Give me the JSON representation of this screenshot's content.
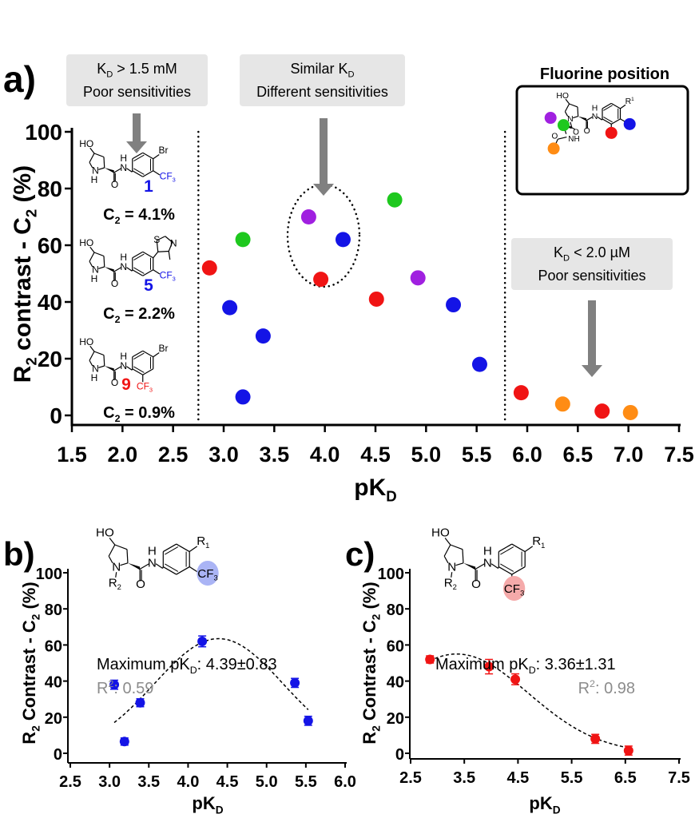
{
  "colors": {
    "red": "#f01414",
    "blue": "#1414e6",
    "green": "#1ec81e",
    "purple": "#a020e0",
    "orange": "#ff8c14",
    "annot_box": "#e6e6e6",
    "arrow": "#808080",
    "r2_text": "#8c8c8c",
    "blue_highlight": "#aab4f5",
    "red_highlight": "#f5aaaa"
  },
  "chart_data": [
    {
      "panel": "a)",
      "type": "scatter",
      "xlabel": [
        {
          "t": "pK"
        },
        {
          "t": "D",
          "sub": true
        }
      ],
      "ylabel": [
        {
          "t": "R"
        },
        {
          "t": "2",
          "sub": true
        },
        {
          "t": " contrast - C"
        },
        {
          "t": "2",
          "sub": true
        },
        {
          "t": " (%)"
        }
      ],
      "xlim": [
        1.5,
        7.5
      ],
      "ylim": [
        0,
        100
      ],
      "xticks": [
        "1.5",
        "2.0",
        "2.5",
        "3.0",
        "3.5",
        "4.0",
        "4.5",
        "5.0",
        "5.5",
        "6.0",
        "6.5",
        "7.0",
        "7.5"
      ],
      "yticks": [
        "0",
        "20",
        "40",
        "60",
        "80",
        "100"
      ],
      "grid": false,
      "vertical_dotted_lines_x": [
        2.75,
        5.78
      ],
      "points": [
        {
          "x": 2.86,
          "y": 52,
          "color": "red"
        },
        {
          "x": 3.96,
          "y": 48,
          "color": "red"
        },
        {
          "x": 4.51,
          "y": 41,
          "color": "red"
        },
        {
          "x": 5.94,
          "y": 8,
          "color": "red"
        },
        {
          "x": 6.74,
          "y": 1.5,
          "color": "red"
        },
        {
          "x": 3.06,
          "y": 38,
          "color": "blue"
        },
        {
          "x": 3.19,
          "y": 6.5,
          "color": "blue"
        },
        {
          "x": 3.39,
          "y": 28,
          "color": "blue"
        },
        {
          "x": 4.18,
          "y": 62,
          "color": "blue"
        },
        {
          "x": 5.27,
          "y": 39,
          "color": "blue"
        },
        {
          "x": 5.53,
          "y": 18,
          "color": "blue"
        },
        {
          "x": 3.19,
          "y": 62,
          "color": "green"
        },
        {
          "x": 4.69,
          "y": 76,
          "color": "green"
        },
        {
          "x": 3.84,
          "y": 70,
          "color": "purple"
        },
        {
          "x": 4.92,
          "y": 48.5,
          "color": "purple"
        },
        {
          "x": 6.35,
          "y": 4,
          "color": "orange"
        },
        {
          "x": 7.02,
          "y": 1,
          "color": "orange"
        }
      ],
      "annotations": [
        {
          "lines": [
            [
              {
                "t": "K"
              },
              {
                "t": "D",
                "sub": true
              },
              {
                "t": " > 1.5 mM"
              }
            ],
            [
              {
                "t": "Poor sensitivities"
              }
            ]
          ]
        },
        {
          "lines": [
            [
              {
                "t": "Similar K"
              },
              {
                "t": "D",
                "sub": true
              }
            ],
            [
              {
                "t": "Different sensitivities"
              }
            ]
          ]
        },
        {
          "lines": [
            [
              {
                "t": "K"
              },
              {
                "t": "D",
                "sub": true
              },
              {
                "t": " < 2.0 µM"
              }
            ],
            [
              {
                "t": "Poor sensitivities"
              }
            ]
          ]
        }
      ],
      "compounds": [
        {
          "number": "1",
          "number_color": "blue",
          "subs": {
            "para": "Br",
            "meta": "CF3"
          },
          "cf3_color": "blue",
          "c2": [
            {
              "t": "C"
            },
            {
              "t": "2",
              "sub": true
            },
            {
              "t": " = 4.1%"
            }
          ]
        },
        {
          "number": "5",
          "number_color": "blue",
          "subs": {
            "para": "thiazole",
            "meta": "CF3"
          },
          "cf3_color": "blue",
          "thiazole_atoms": [
            "S",
            "N"
          ],
          "c2": [
            {
              "t": "C"
            },
            {
              "t": "2",
              "sub": true
            },
            {
              "t": " = 2.2%"
            }
          ]
        },
        {
          "number": "9",
          "number_color": "red",
          "subs": {
            "para": "Br",
            "ortho": "CF3"
          },
          "cf3_color": "red",
          "c2": [
            {
              "t": "C"
            },
            {
              "t": "2",
              "sub": true
            },
            {
              "t": " = 0.9%"
            }
          ]
        }
      ],
      "inset": {
        "title": "Fluorine position",
        "atoms": {
          "ho": "HO",
          "r1": "R",
          "r1_sup": "1",
          "n": "N",
          "nh": "N",
          "h": "H",
          "o": "O",
          "o2": "O",
          "o3": "O",
          "nh2": "NH"
        }
      }
    },
    {
      "panel": "b)",
      "type": "scatter",
      "xlabel": [
        {
          "t": "pK"
        },
        {
          "t": "D",
          "sub": true
        }
      ],
      "ylabel": [
        {
          "t": "R"
        },
        {
          "t": "2",
          "sub": true
        },
        {
          "t": " Contrast - C"
        },
        {
          "t": "2",
          "sub": true
        },
        {
          "t": " (%)"
        }
      ],
      "xlim": [
        2.5,
        6.0
      ],
      "ylim": [
        0,
        100
      ],
      "xticks": [
        "2.5",
        "3.0",
        "3.5",
        "4.0",
        "4.5",
        "5.0",
        "5.5",
        "6.0"
      ],
      "yticks": [
        "0",
        "20",
        "40",
        "60",
        "80",
        "100"
      ],
      "color": "blue",
      "points": [
        {
          "x": 3.06,
          "y": 38,
          "err": 2.5
        },
        {
          "x": 3.19,
          "y": 6.5,
          "err": 2
        },
        {
          "x": 3.39,
          "y": 28,
          "err": 2.2
        },
        {
          "x": 4.18,
          "y": 62,
          "err": 3
        },
        {
          "x": 5.36,
          "y": 39,
          "err": 2.5
        },
        {
          "x": 5.53,
          "y": 18,
          "err": 2.5
        }
      ],
      "fit": {
        "type": "gaussian",
        "center": 4.39,
        "peak": 63.5,
        "sigma": 0.82,
        "x_range": [
          3.06,
          5.53
        ]
      },
      "max_label": [
        {
          "t": "Maximum pK"
        },
        {
          "t": "D",
          "sub": true
        },
        {
          "t": ": 4.39±0.83"
        }
      ],
      "r2_label": [
        {
          "t": "R"
        },
        {
          "t": "2",
          "sup": true
        },
        {
          "t": ": 0.59"
        }
      ],
      "structure": {
        "ho": "HO",
        "r1": "R",
        "r1_sub": "1",
        "r2": "R",
        "r2_sub": "2",
        "n": "N",
        "h": "H",
        "o": "O",
        "cf3": "CF",
        "cf3_sub": "3",
        "cf3_position": "meta",
        "highlight": "blue_highlight"
      }
    },
    {
      "panel": "c)",
      "type": "scatter",
      "xlabel": [
        {
          "t": "pK"
        },
        {
          "t": "D",
          "sub": true
        }
      ],
      "ylabel": [
        {
          "t": "R"
        },
        {
          "t": "2",
          "sub": true
        },
        {
          "t": " Contrast - C"
        },
        {
          "t": "2",
          "sub": true
        },
        {
          "t": " (%)"
        }
      ],
      "xlim": [
        2.5,
        7.5
      ],
      "ylim": [
        0,
        100
      ],
      "xticks": [
        "2.5",
        "3.5",
        "4.5",
        "5.5",
        "6.5",
        "7.5"
      ],
      "yticks": [
        "0",
        "20",
        "40",
        "60",
        "80",
        "100"
      ],
      "color": "red",
      "points": [
        {
          "x": 2.86,
          "y": 52,
          "err": 2
        },
        {
          "x": 3.96,
          "y": 48,
          "err": 4
        },
        {
          "x": 4.45,
          "y": 41,
          "err": 3
        },
        {
          "x": 5.94,
          "y": 8,
          "err": 2.5
        },
        {
          "x": 6.56,
          "y": 1.5,
          "err": 2.5
        }
      ],
      "fit": {
        "type": "gaussian",
        "center": 3.36,
        "peak": 55,
        "sigma": 1.33,
        "x_range": [
          2.86,
          6.56
        ]
      },
      "max_label": [
        {
          "t": "Maximum pK"
        },
        {
          "t": "D",
          "sub": true
        },
        {
          "t": ": 3.36±1.31"
        }
      ],
      "r2_label": [
        {
          "t": "R"
        },
        {
          "t": "2",
          "sup": true
        },
        {
          "t": ": 0.98"
        }
      ],
      "structure": {
        "ho": "HO",
        "r1": "R",
        "r1_sub": "1",
        "r2": "R",
        "r2_sub": "2",
        "n": "N",
        "h": "H",
        "o": "O",
        "cf3": "CF",
        "cf3_sub": "3",
        "cf3_position": "ortho",
        "highlight": "red_highlight"
      }
    }
  ]
}
